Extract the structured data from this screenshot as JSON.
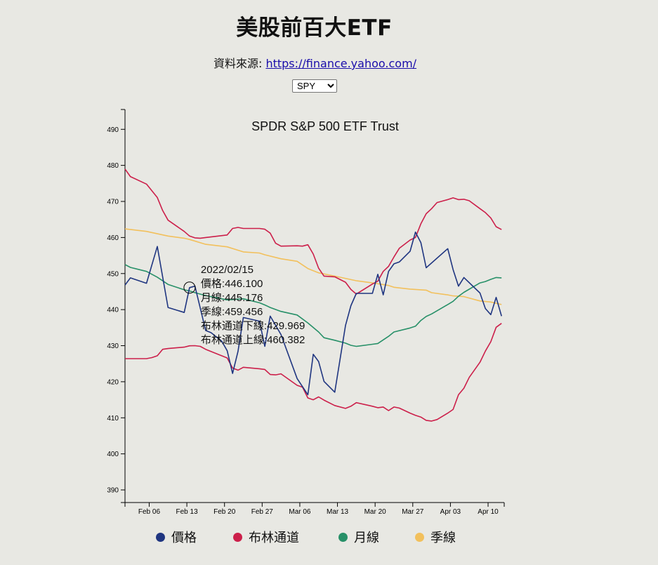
{
  "header": {
    "title": "美股前百大ETF",
    "source_label": "資料來源:",
    "source_link": "https://finance.yahoo.com/",
    "selected_ticker": "SPY"
  },
  "colors": {
    "price": "#1f3580",
    "bollinger": "#cc1f4a",
    "monthly": "#279068",
    "quarterly": "#f2c05c"
  },
  "chart_data": {
    "type": "line",
    "title": "SPDR S&P 500 ETF Trust",
    "x_ticks": [
      "Feb 06",
      "Feb 13",
      "Feb 20",
      "Feb 27",
      "Mar 06",
      "Mar 13",
      "Mar 20",
      "Mar 27",
      "Apr 03",
      "Apr 10"
    ],
    "x_tick_pos": [
      5,
      12,
      19,
      26,
      33,
      40,
      47,
      54,
      61,
      68
    ],
    "x_range": [
      0.5,
      71
    ],
    "y_ticks": [
      390,
      400,
      410,
      420,
      430,
      440,
      450,
      460,
      470,
      480,
      490
    ],
    "ylim": [
      386.5,
      495.5
    ],
    "legend": [
      "價格",
      "布林通道",
      "月線",
      "季線"
    ],
    "tooltip": {
      "x": 12.5,
      "y": 446.1,
      "lines": [
        "2022/02/15",
        "價格:446.100",
        "月線:445.176",
        "季線:459.456",
        "布林通道下線:429.969",
        "布林通道上線:460.382"
      ]
    },
    "series": [
      {
        "name": "價格",
        "x": [
          0.5,
          1.5,
          4.5,
          6.5,
          8.5,
          11.5,
          12.5,
          13.5,
          15.5,
          16.5,
          18.5,
          19.5,
          20.5,
          21.5,
          22.5,
          25.5,
          26.5,
          27.5,
          29.5,
          32.5,
          34.5,
          35.5,
          36.5,
          37.5,
          39.5,
          41.5,
          42.5,
          43.5,
          46.5,
          47.5,
          48.5,
          49.5,
          50.5,
          51.5,
          53.5,
          54.5,
          55.5,
          56.5,
          60.5,
          61.5,
          62.5,
          63.5,
          66.5,
          67.5,
          68.5,
          69.5,
          70.5
        ],
        "y": [
          446.8,
          448.8,
          447.3,
          457.5,
          440.6,
          439.2,
          446.1,
          446.5,
          434.2,
          433.6,
          431.2,
          428.6,
          422.3,
          428.4,
          437.8,
          436.8,
          429.8,
          438.2,
          433.1,
          420.9,
          416.4,
          427.6,
          425.6,
          420.1,
          417.1,
          435.6,
          441.1,
          444.5,
          444.5,
          449.8,
          444.1,
          450.6,
          452.7,
          453.2,
          456.2,
          461.5,
          458.6,
          451.6,
          456.9,
          451.1,
          446.5,
          448.9,
          444.6,
          440.3,
          438.6,
          443.4,
          438.2
        ]
      },
      {
        "name": "布林通道",
        "role": "upper",
        "x": [
          0.5,
          1.5,
          4.5,
          6.5,
          7.5,
          8.5,
          11.5,
          12.5,
          13.5,
          14.5,
          15.5,
          19.5,
          20.5,
          21.5,
          22.5,
          25.5,
          26.5,
          27.5,
          28.5,
          29.5,
          32.5,
          33.5,
          34.5,
          35.5,
          36.5,
          37.5,
          39.5,
          41.5,
          42.5,
          43.5,
          46.5,
          47.5,
          48.5,
          49.5,
          50.5,
          51.5,
          53.5,
          54.5,
          55.5,
          56.5,
          57.5,
          58.5,
          60.5,
          61.5,
          62.5,
          63.5,
          64.5,
          66.5,
          67.5,
          68.5,
          69.5,
          70.5
        ],
        "y": [
          479.0,
          476.9,
          474.8,
          471.1,
          467.5,
          464.8,
          461.7,
          460.4,
          459.9,
          459.8,
          460.0,
          460.7,
          462.5,
          462.8,
          462.5,
          462.5,
          462.3,
          461.2,
          458.4,
          457.6,
          457.7,
          457.6,
          458.0,
          455.4,
          451.5,
          449.3,
          449.1,
          447.6,
          445.6,
          444.3,
          447.1,
          447.9,
          450.6,
          452.0,
          454.6,
          457.0,
          459.3,
          460.0,
          463.8,
          466.6,
          468.0,
          469.7,
          470.5,
          471.0,
          470.5,
          470.6,
          470.2,
          468.0,
          466.9,
          465.4,
          463.0,
          462.2
        ]
      },
      {
        "name": "布林通道",
        "role": "lower",
        "x": [
          0.5,
          1.5,
          4.5,
          5.5,
          6.5,
          7.5,
          8.5,
          11.5,
          12.5,
          13.5,
          14.5,
          15.5,
          19.5,
          20.5,
          21.5,
          22.5,
          25.5,
          26.5,
          27.5,
          28.5,
          29.5,
          32.5,
          33.5,
          34.5,
          35.5,
          36.5,
          37.5,
          39.5,
          41.5,
          42.5,
          43.5,
          46.5,
          47.5,
          48.5,
          49.5,
          50.5,
          51.5,
          53.5,
          54.5,
          55.5,
          56.5,
          57.5,
          58.5,
          60.5,
          61.5,
          62.5,
          63.5,
          64.5,
          66.5,
          67.5,
          68.5,
          69.5,
          70.5
        ],
        "y": [
          426.4,
          426.4,
          426.4,
          426.7,
          427.2,
          429.0,
          429.2,
          429.6,
          429.97,
          430.0,
          429.8,
          429.0,
          426.6,
          423.8,
          423.2,
          424.0,
          423.6,
          423.4,
          422.0,
          421.9,
          422.2,
          419.0,
          418.5,
          415.5,
          415.0,
          415.8,
          414.9,
          413.4,
          412.6,
          413.2,
          414.2,
          413.2,
          412.8,
          413.0,
          412.0,
          413.0,
          412.7,
          411.3,
          410.7,
          410.2,
          409.3,
          409.1,
          409.5,
          411.3,
          412.3,
          416.4,
          418.2,
          421.2,
          425.4,
          428.5,
          431.1,
          435.1,
          436.2
        ]
      },
      {
        "name": "月線",
        "x": [
          0.5,
          1.5,
          4.5,
          6.5,
          8.5,
          11.5,
          12.5,
          13.5,
          15.5,
          19.5,
          22.5,
          25.5,
          26.5,
          27.5,
          29.5,
          32.5,
          34.5,
          36.5,
          37.5,
          39.5,
          41.5,
          42.5,
          43.5,
          46.5,
          47.5,
          49.5,
          50.5,
          53.5,
          54.5,
          55.5,
          56.5,
          57.5,
          60.5,
          61.5,
          62.5,
          63.5,
          66.5,
          67.5,
          68.5,
          69.5,
          70.5
        ],
        "y": [
          452.5,
          451.7,
          450.6,
          449.0,
          447.0,
          445.5,
          445.18,
          444.7,
          443.9,
          442.7,
          443.0,
          441.9,
          441.3,
          440.6,
          439.5,
          438.5,
          436.3,
          433.8,
          432.2,
          431.5,
          430.7,
          430.1,
          429.8,
          430.4,
          430.6,
          432.6,
          433.8,
          434.9,
          435.4,
          437.0,
          438.1,
          438.8,
          441.4,
          442.3,
          443.7,
          444.8,
          447.4,
          447.8,
          448.4,
          448.9,
          448.8
        ]
      },
      {
        "name": "季線",
        "x": [
          0.5,
          4.5,
          8.5,
          11.5,
          12.5,
          15.5,
          19.5,
          22.5,
          25.5,
          26.5,
          29.5,
          32.5,
          34.5,
          36.5,
          39.5,
          43.5,
          46.5,
          49.5,
          50.5,
          53.5,
          56.5,
          57.5,
          60.5,
          61.5,
          63.5,
          66.5,
          68.5,
          70.5
        ],
        "y": [
          462.4,
          461.7,
          460.4,
          459.8,
          459.46,
          458.1,
          457.4,
          456.0,
          455.7,
          455.2,
          454.1,
          453.4,
          451.4,
          450.2,
          449.3,
          448.0,
          447.4,
          446.7,
          446.2,
          445.7,
          445.4,
          444.7,
          444.1,
          443.8,
          443.6,
          442.4,
          442.1,
          441.4
        ]
      }
    ]
  }
}
